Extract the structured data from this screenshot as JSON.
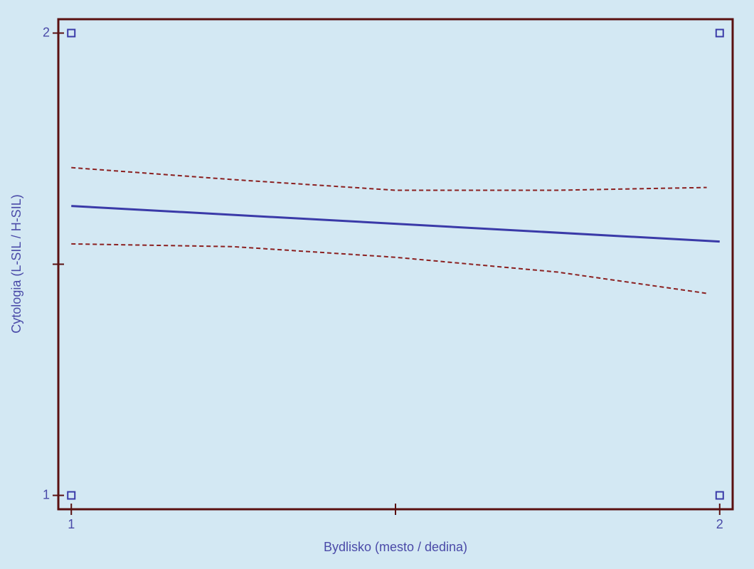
{
  "chart_data": {
    "type": "scatter",
    "x_label": "Bydlisko (mesto / dedina)",
    "y_label": "Cytologia (L-SIL / H-SIL)",
    "xlim": [
      0.98,
      2.02
    ],
    "ylim": [
      0.97,
      2.03
    ],
    "xticks": [
      1,
      {
        "value": 1.5,
        "label": null
      },
      2
    ],
    "yticks": [
      1,
      {
        "value": 1.5,
        "label": null
      },
      2
    ],
    "series": [
      {
        "style": "markers",
        "color": "#3a3aa8",
        "x": [
          1,
          1,
          2,
          2
        ],
        "values": [
          1,
          2,
          1,
          2
        ]
      },
      {
        "style": "solid",
        "color": "#3a3aa8",
        "x": [
          1,
          2
        ],
        "values": [
          1.626,
          1.549
        ]
      },
      {
        "style": "dashed",
        "color": "#8b2020",
        "x": [
          1,
          1.25,
          1.5,
          1.75,
          1.98
        ],
        "values": [
          1.709,
          1.683,
          1.66,
          1.66,
          1.666
        ]
      },
      {
        "style": "dashed",
        "color": "#8b2020",
        "x": [
          1,
          1.25,
          1.5,
          1.75,
          1.98
        ],
        "values": [
          1.544,
          1.538,
          1.515,
          1.483,
          1.437
        ]
      }
    ]
  }
}
